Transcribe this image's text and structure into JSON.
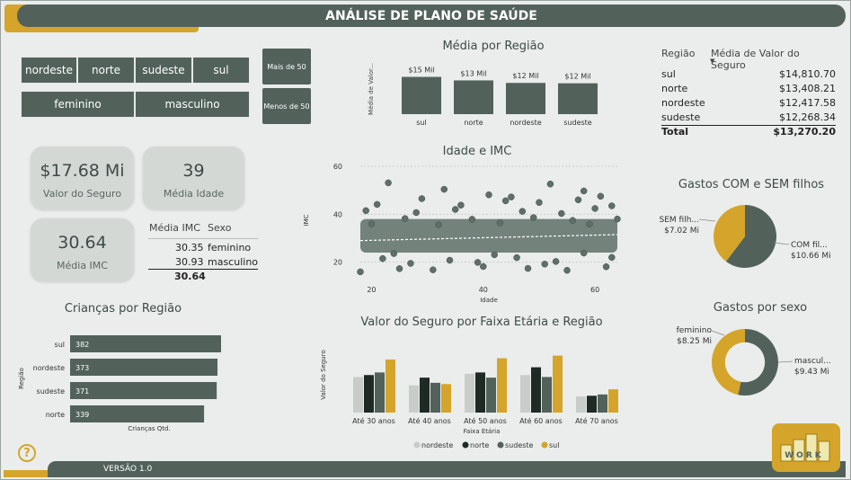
{
  "header": {
    "title": "ANÁLISE DE PLANO DE SAÚDE"
  },
  "footer": {
    "version": "VERSÃO 1.0"
  },
  "filters": {
    "regions": [
      "nordeste",
      "norte",
      "sudeste",
      "sul"
    ],
    "sexes": [
      "feminino",
      "masculino"
    ],
    "age_buttons": [
      "Mais de 50",
      "Menos de 50"
    ]
  },
  "kpis": {
    "insurance_value": "$17.68 Mi",
    "insurance_label": "Valor do Seguro",
    "avg_age": "39",
    "avg_age_label": "Média Idade",
    "avg_bmi": "30.64",
    "avg_bmi_label": "Média IMC"
  },
  "bmi_table": {
    "headers": [
      "Média IMC",
      "Sexo"
    ],
    "rows": [
      {
        "value": "30.35",
        "sex": "feminino"
      },
      {
        "value": "30.93",
        "sex": "masculino"
      }
    ],
    "total": "30.64"
  },
  "region_table": {
    "headers": [
      "Região",
      "Média de Valor do Seguro"
    ],
    "rows": [
      {
        "region": "sul",
        "value": "$14,810.70"
      },
      {
        "region": "norte",
        "value": "$13,408.21"
      },
      {
        "region": "nordeste",
        "value": "$12,417.58"
      },
      {
        "region": "sudeste",
        "value": "$12,268.34"
      }
    ],
    "total_label": "Total",
    "total_value": "$13,270.20"
  },
  "help_label": "?",
  "logo_text": "WORK",
  "colors": {
    "dark": "#52625b",
    "gold": "#d4a52a",
    "darkest": "#1f2a24",
    "light": "#c8cdca",
    "mid": "#5f6f68"
  },
  "chart_data": [
    {
      "type": "bar",
      "title": "Média por Região",
      "ylabel": "Média de Valor...",
      "categories": [
        "sul",
        "norte",
        "nordeste",
        "sudeste"
      ],
      "values": [
        14810.7,
        13408.21,
        12417.58,
        12268.34
      ],
      "data_labels": [
        "$15 Mil",
        "$13 Mil",
        "$12 Mil",
        "$12 Mil"
      ],
      "ylim": [
        0,
        15000
      ]
    },
    {
      "type": "scatter",
      "title": "Idade e IMC",
      "xlabel": "Idade",
      "ylabel": "IMC",
      "xlim": [
        18,
        64
      ],
      "ylim": [
        15,
        60
      ],
      "xticks": [
        20,
        40,
        60
      ],
      "yticks": [
        20,
        40,
        60
      ],
      "trend": [
        [
          18,
          29.0
        ],
        [
          64,
          31.5
        ]
      ],
      "points": [
        [
          18,
          15.96
        ],
        [
          25,
          17.3
        ],
        [
          31,
          16.8
        ],
        [
          40,
          18.2
        ],
        [
          48,
          17.4
        ],
        [
          55,
          16.6
        ],
        [
          62,
          18.1
        ],
        [
          21,
          44.1
        ],
        [
          29,
          46.5
        ],
        [
          36,
          43.8
        ],
        [
          44,
          45.6
        ],
        [
          50,
          44.9
        ],
        [
          57,
          46.0
        ],
        [
          63,
          43.5
        ],
        [
          19,
          41.5
        ],
        [
          28,
          40.7
        ],
        [
          35,
          42.0
        ],
        [
          47,
          41.2
        ],
        [
          54,
          40.3
        ],
        [
          60,
          42.4
        ],
        [
          23,
          53.1
        ],
        [
          33,
          50.4
        ],
        [
          52,
          52.6
        ],
        [
          58,
          49.7
        ],
        [
          41,
          48.1
        ],
        [
          45,
          47.2
        ],
        [
          61,
          47.5
        ],
        [
          26,
          38.2
        ],
        [
          38,
          37.9
        ],
        [
          49,
          38.6
        ],
        [
          56,
          37.4
        ],
        [
          64,
          38.0
        ],
        [
          20,
          36.0
        ],
        [
          32,
          35.6
        ],
        [
          43,
          36.4
        ],
        [
          59,
          35.9
        ],
        [
          22,
          21.5
        ],
        [
          34,
          20.8
        ],
        [
          46,
          21.9
        ],
        [
          53,
          20.3
        ],
        [
          63,
          22.0
        ],
        [
          27,
          19.5
        ],
        [
          39,
          19.9
        ],
        [
          51,
          19.2
        ],
        [
          24,
          23.6
        ],
        [
          42,
          23.1
        ],
        [
          58,
          23.8
        ]
      ]
    },
    {
      "type": "bar",
      "title": "Valor do Seguro por Faixa Etária e Região",
      "xlabel": "Faixa Etária",
      "ylabel": "Valor do Seguro",
      "categories": [
        "Até 30 anos",
        "Até 40 anos",
        "Até 50 anos",
        "Até 60 anos",
        "Até 70 anos"
      ],
      "series": [
        {
          "name": "nordeste",
          "values": [
            55,
            42,
            60,
            58,
            25
          ]
        },
        {
          "name": "norte",
          "values": [
            58,
            54,
            62,
            70,
            26
          ]
        },
        {
          "name": "sudeste",
          "values": [
            62,
            46,
            54,
            55,
            28
          ]
        },
        {
          "name": "sul",
          "values": [
            82,
            44,
            84,
            88,
            36
          ]
        }
      ],
      "ylim": [
        0,
        100
      ]
    },
    {
      "type": "bar",
      "orientation": "horizontal",
      "title": "Crianças por Região",
      "xlabel": "Crianças Qtd.",
      "ylabel": "Região",
      "categories": [
        "sul",
        "nordeste",
        "sudeste",
        "norte"
      ],
      "values": [
        382,
        373,
        371,
        339
      ],
      "xlim": [
        0,
        382
      ]
    },
    {
      "type": "pie",
      "title": "Gastos COM e SEM filhos",
      "labels": [
        "SEM filh...",
        "COM fil..."
      ],
      "values": [
        7.02,
        10.66
      ],
      "value_labels": [
        "$7.02 Mi",
        "$10.66 Mi"
      ]
    },
    {
      "type": "pie",
      "donut": true,
      "title": "Gastos por sexo",
      "labels": [
        "feminino",
        "mascul..."
      ],
      "values": [
        8.25,
        9.43
      ],
      "value_labels": [
        "$8.25 Mi",
        "$9.43 Mi"
      ]
    }
  ]
}
